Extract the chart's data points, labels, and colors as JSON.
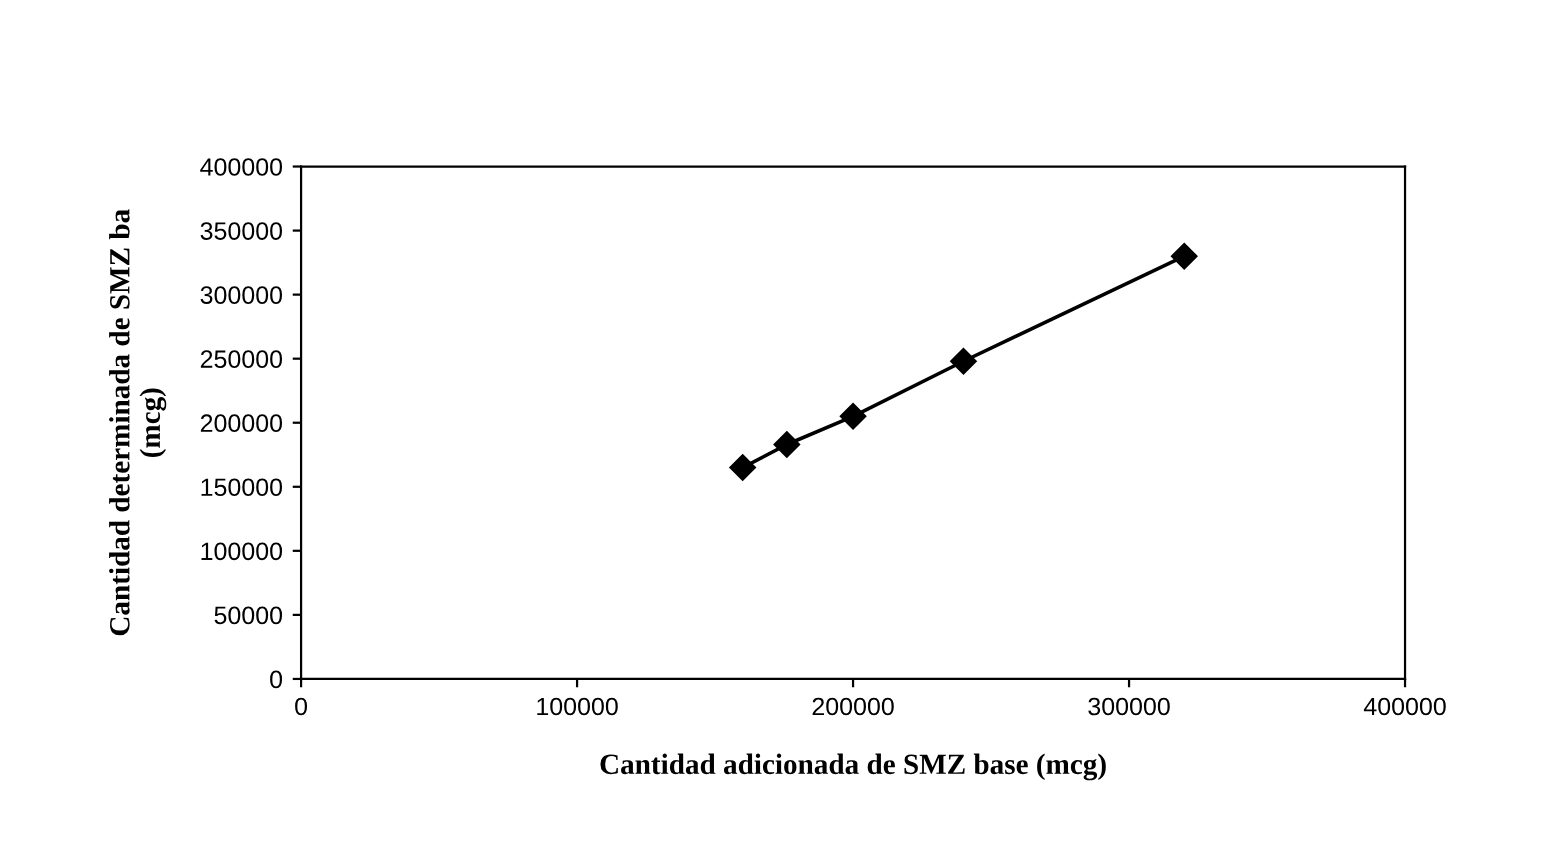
{
  "chart_data": {
    "type": "line",
    "xlabel": "Cantidad adicionada de SMZ base (mcg)",
    "ylabel": "Cantidad determinada de SMZ ba\n(mcg)",
    "x": [
      160000,
      176000,
      200000,
      240000,
      320000
    ],
    "series": [
      {
        "color": "#000000",
        "values": [
          165000,
          183000,
          205000,
          248000,
          330000
        ]
      }
    ],
    "xlim": [
      0,
      400000
    ],
    "xticks": [
      0,
      100000,
      200000,
      300000,
      400000
    ],
    "ylim": [
      0,
      400000
    ],
    "yticks": [
      0,
      50000,
      100000,
      150000,
      200000,
      250000,
      300000,
      350000,
      400000
    ],
    "marker": "diamond",
    "line_style": "solid",
    "grid": false,
    "legend": false
  }
}
